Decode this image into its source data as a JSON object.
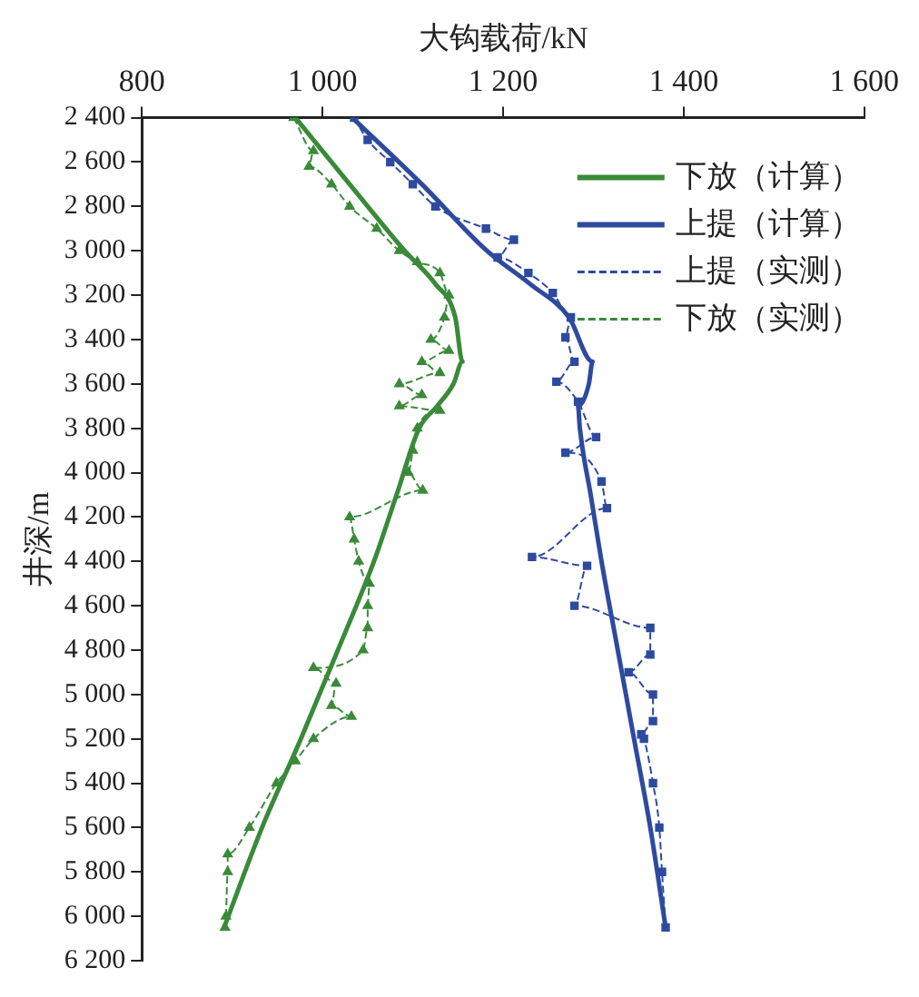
{
  "chart_data": {
    "type": "line",
    "xlabel": "大钩载荷/kN",
    "ylabel": "井深/m",
    "xlim": [
      800,
      1600
    ],
    "xticks": [
      800,
      {
        "value": 1000,
        "label": "1 000"
      },
      {
        "value": 1200,
        "label": "1 200"
      },
      {
        "value": 1400,
        "label": "1 400"
      },
      {
        "value": 1600,
        "label": "1 600"
      }
    ],
    "ylim": [
      6200,
      2400
    ],
    "yticks": [
      {
        "value": 2400,
        "label": "2 400"
      },
      {
        "value": 2600,
        "label": "2 600"
      },
      {
        "value": 2800,
        "label": "2 800"
      },
      {
        "value": 3000,
        "label": "3 000"
      },
      {
        "value": 3200,
        "label": "3 200"
      },
      {
        "value": 3400,
        "label": "3 400"
      },
      {
        "value": 3600,
        "label": "3 600"
      },
      {
        "value": 3800,
        "label": "3 800"
      },
      {
        "value": 4000,
        "label": "4 000"
      },
      {
        "value": 4200,
        "label": "4 200"
      },
      {
        "value": 4400,
        "label": "4 400"
      },
      {
        "value": 4600,
        "label": "4 600"
      },
      {
        "value": 4800,
        "label": "4 800"
      },
      {
        "value": 5000,
        "label": "5 000"
      },
      {
        "value": 5200,
        "label": "5 200"
      },
      {
        "value": 5400,
        "label": "5 400"
      },
      {
        "value": 5600,
        "label": "5 600"
      },
      {
        "value": 5800,
        "label": "5 800"
      },
      {
        "value": 6000,
        "label": "6 000"
      },
      {
        "value": 6200,
        "label": "6 200"
      }
    ],
    "grid": false,
    "legend": "top right",
    "series": [
      {
        "name": "下放（计算）",
        "color": "#3a8a3a",
        "line_style": "solid",
        "marker": "none",
        "x": [
          970,
          1030,
          1091,
          1125,
          1147,
          1155,
          1145,
          1127,
          1107,
          1082,
          1057,
          1017,
          976,
          933,
          891
        ],
        "values": [
          2400,
          2700,
          3000,
          3150,
          3300,
          3500,
          3600,
          3700,
          3800,
          4100,
          4400,
          4800,
          5200,
          5600,
          6050
        ]
      },
      {
        "name": "上提（计算）",
        "color": "#2e4a9e",
        "line_style": "solid",
        "marker": "none",
        "x": [
          1033,
          1110,
          1182,
          1230,
          1273,
          1299,
          1295,
          1283,
          1285,
          1297,
          1309,
          1327,
          1345,
          1363,
          1380
        ],
        "values": [
          2400,
          2700,
          3000,
          3150,
          3300,
          3500,
          3600,
          3700,
          3800,
          4100,
          4400,
          4800,
          5200,
          5600,
          6050
        ]
      },
      {
        "name": "上提（实测）",
        "color": "#2e4a9e",
        "line_style": "dashed",
        "marker": "square",
        "x": [
          1035,
          1050,
          1075,
          1100,
          1125,
          1181,
          1212,
          1194,
          1228,
          1255,
          1275,
          1269,
          1279,
          1259,
          1283,
          1303,
          1269,
          1309,
          1315,
          1232,
          1293,
          1279,
          1363,
          1363,
          1339,
          1366,
          1366,
          1353,
          1356,
          1366,
          1373,
          1376,
          1380
        ],
        "values": [
          2400,
          2500,
          2600,
          2700,
          2800,
          2900,
          2950,
          3030,
          3100,
          3190,
          3300,
          3390,
          3500,
          3590,
          3680,
          3840,
          3910,
          4040,
          4160,
          4380,
          4420,
          4600,
          4700,
          4820,
          4900,
          5000,
          5120,
          5180,
          5200,
          5400,
          5600,
          5800,
          6050
        ]
      },
      {
        "name": "下放（实测）",
        "color": "#3a8a3a",
        "line_style": "dashed",
        "marker": "triangle",
        "x": [
          968,
          990,
          985,
          1010,
          1030,
          1060,
          1085,
          1105,
          1130,
          1140,
          1135,
          1120,
          1140,
          1110,
          1130,
          1085,
          1110,
          1085,
          1130,
          1105,
          1100,
          1095,
          1111,
          1030,
          1035,
          1040,
          1052,
          1050,
          1050,
          1045,
          990,
          1015,
          1010,
          1032,
          990,
          970,
          949,
          919,
          895,
          895,
          893,
          892
        ],
        "values": [
          2400,
          2550,
          2620,
          2700,
          2800,
          2900,
          3000,
          3050,
          3100,
          3200,
          3300,
          3400,
          3450,
          3500,
          3550,
          3600,
          3650,
          3700,
          3720,
          3800,
          3900,
          4000,
          4080,
          4200,
          4300,
          4400,
          4500,
          4600,
          4700,
          4800,
          4880,
          4950,
          5050,
          5100,
          5200,
          5300,
          5400,
          5600,
          5720,
          5800,
          6000,
          6050
        ]
      }
    ]
  }
}
